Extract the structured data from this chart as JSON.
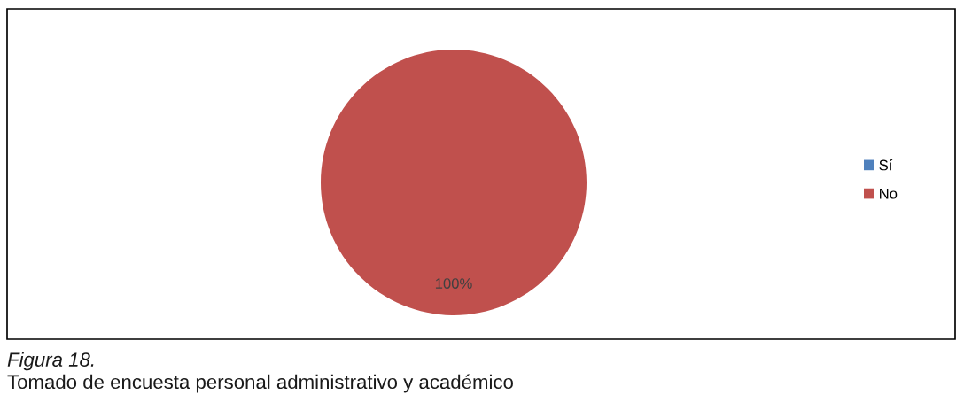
{
  "chart_data": {
    "type": "pie",
    "categories": [
      "Sí",
      "No"
    ],
    "values": [
      0,
      100
    ],
    "colors": [
      "#4f81bd",
      "#c0504d"
    ],
    "value_labels": [
      null,
      "100%"
    ],
    "legend": "right",
    "annotations": [
      "Figura 18.",
      "Tomado de encuesta personal administrativo y académico"
    ]
  }
}
